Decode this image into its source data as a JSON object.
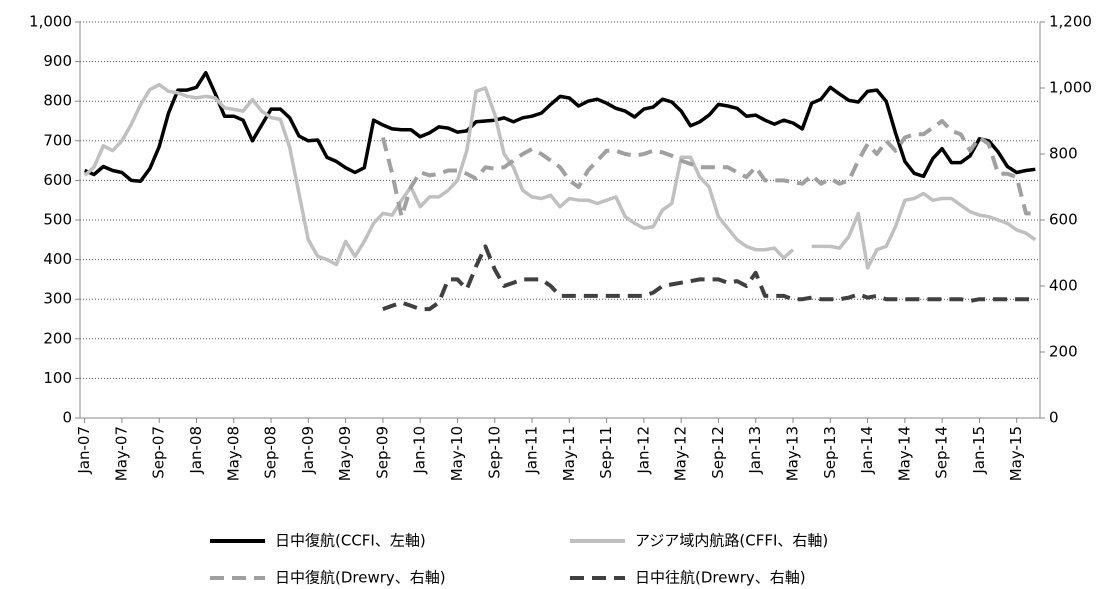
{
  "chart_data": {
    "type": "line",
    "categories": [
      "Jan-07",
      null,
      null,
      null,
      "May-07",
      null,
      null,
      null,
      "Sep-07",
      null,
      null,
      null,
      "Jan-08",
      null,
      null,
      null,
      "May-08",
      null,
      null,
      null,
      "Sep-08",
      null,
      null,
      null,
      "Jan-09",
      null,
      null,
      null,
      "May-09",
      null,
      null,
      null,
      "Sep-09",
      null,
      null,
      null,
      "Jan-10",
      null,
      null,
      null,
      "May-10",
      null,
      null,
      null,
      "Sep-10",
      null,
      null,
      null,
      "Jan-11",
      null,
      null,
      null,
      "May-11",
      null,
      null,
      null,
      "Sep-11",
      null,
      null,
      null,
      "Jan-12",
      null,
      null,
      null,
      "May-12",
      null,
      null,
      null,
      "Sep-12",
      null,
      null,
      null,
      "Jan-13",
      null,
      null,
      null,
      "May-13",
      null,
      null,
      null,
      "Sep-13",
      null,
      null,
      null,
      "Jan-14",
      null,
      null,
      null,
      "May-14",
      null,
      null,
      null,
      "Sep-14",
      null,
      null,
      null,
      "Jan-15",
      null,
      null,
      null,
      "May-15",
      null,
      null
    ],
    "series": [
      {
        "name": "日中復航(CCFI、左軸)",
        "color": "#000000",
        "dash": false,
        "axis": "y",
        "values": [
          625,
          615,
          635,
          625,
          620,
          600,
          598,
          630,
          685,
          770,
          828,
          828,
          835,
          872,
          820,
          762,
          762,
          752,
          700,
          740,
          780,
          780,
          758,
          712,
          700,
          702,
          658,
          648,
          632,
          620,
          632,
          752,
          740,
          730,
          728,
          728,
          710,
          720,
          735,
          732,
          722,
          725,
          748,
          750,
          752,
          758,
          748,
          758,
          762,
          770,
          792,
          812,
          808,
          788,
          800,
          805,
          795,
          782,
          775,
          760,
          780,
          785,
          805,
          798,
          775,
          738,
          748,
          765,
          792,
          788,
          782,
          762,
          765,
          752,
          742,
          752,
          745,
          730,
          795,
          805,
          835,
          818,
          802,
          798,
          825,
          828,
          800,
          720,
          648,
          618,
          610,
          655,
          680,
          645,
          645,
          662,
          705,
          700,
          672,
          635,
          620,
          625,
          628
        ]
      },
      {
        "name": "アジア域内航路(CFFI、右軸)",
        "color": "#c0c0c0",
        "dash": false,
        "axis": "y2",
        "values": [
          735,
          760,
          825,
          810,
          840,
          890,
          950,
          995,
          1010,
          990,
          985,
          975,
          970,
          975,
          970,
          940,
          935,
          930,
          965,
          930,
          910,
          905,
          820,
          680,
          540,
          490,
          480,
          465,
          535,
          490,
          535,
          590,
          620,
          615,
          660,
          700,
          640,
          670,
          670,
          690,
          720,
          810,
          990,
          1000,
          920,
          800,
          760,
          690,
          670,
          665,
          675,
          640,
          665,
          660,
          660,
          650,
          660,
          670,
          610,
          590,
          575,
          580,
          630,
          650,
          790,
          790,
          730,
          700,
          610,
          575,
          540,
          520,
          510,
          510,
          515,
          485,
          510,
          null,
          520,
          520,
          520,
          515,
          550,
          620,
          455,
          510,
          520,
          580,
          660,
          665,
          680,
          660,
          665,
          665,
          645,
          625,
          615,
          610,
          600,
          590,
          570,
          560,
          540
        ]
      },
      {
        "name": "日中復航(Drewry、右軸)",
        "color": "#a0a0a0",
        "dash": true,
        "axis": "y2",
        "values": [
          null,
          null,
          null,
          null,
          null,
          null,
          null,
          null,
          null,
          null,
          null,
          null,
          null,
          null,
          null,
          null,
          null,
          null,
          null,
          null,
          null,
          null,
          null,
          null,
          null,
          null,
          null,
          null,
          null,
          null,
          null,
          null,
          850,
          740,
          610,
          700,
          745,
          735,
          740,
          750,
          750,
          740,
          725,
          760,
          755,
          760,
          780,
          800,
          815,
          800,
          780,
          760,
          720,
          700,
          750,
          780,
          810,
          810,
          800,
          795,
          800,
          810,
          805,
          795,
          780,
          770,
          760,
          760,
          760,
          760,
          745,
          730,
          760,
          720,
          720,
          720,
          715,
          710,
          735,
          710,
          725,
          710,
          720,
          780,
          830,
          800,
          840,
          810,
          850,
          860,
          860,
          880,
          900,
          870,
          860,
          810,
          850,
          830,
          740,
          740,
          730,
          620,
          620
        ]
      },
      {
        "name": "日中往航(Drewry、右軸)",
        "color": "#404040",
        "dash": true,
        "axis": "y2",
        "values": [
          null,
          null,
          null,
          null,
          null,
          null,
          null,
          null,
          null,
          null,
          null,
          null,
          null,
          null,
          null,
          null,
          null,
          null,
          null,
          null,
          null,
          null,
          null,
          null,
          null,
          null,
          null,
          null,
          null,
          null,
          null,
          null,
          330,
          340,
          350,
          340,
          330,
          330,
          350,
          420,
          420,
          390,
          460,
          520,
          450,
          400,
          410,
          420,
          420,
          420,
          400,
          370,
          370,
          370,
          370,
          370,
          370,
          370,
          370,
          370,
          370,
          380,
          400,
          405,
          410,
          415,
          420,
          420,
          420,
          410,
          415,
          400,
          440,
          370,
          370,
          370,
          360,
          360,
          365,
          360,
          360,
          360,
          365,
          375,
          365,
          370,
          360,
          360,
          360,
          360,
          360,
          360,
          360,
          360,
          360,
          355,
          360,
          360,
          360,
          360,
          360,
          360,
          360
        ]
      }
    ],
    "ylim": [
      0,
      1000
    ],
    "yticks": [
      0,
      100,
      200,
      300,
      400,
      500,
      600,
      700,
      800,
      900,
      {
        "value": 1000,
        "label": "1,000"
      }
    ],
    "y2lim": [
      0,
      1200
    ],
    "y2ticks": [
      0,
      200,
      400,
      600,
      800,
      {
        "value": 1000,
        "label": "1,000"
      },
      {
        "value": 1200,
        "label": "1,200"
      }
    ],
    "grid": true,
    "legend": "bottom"
  }
}
